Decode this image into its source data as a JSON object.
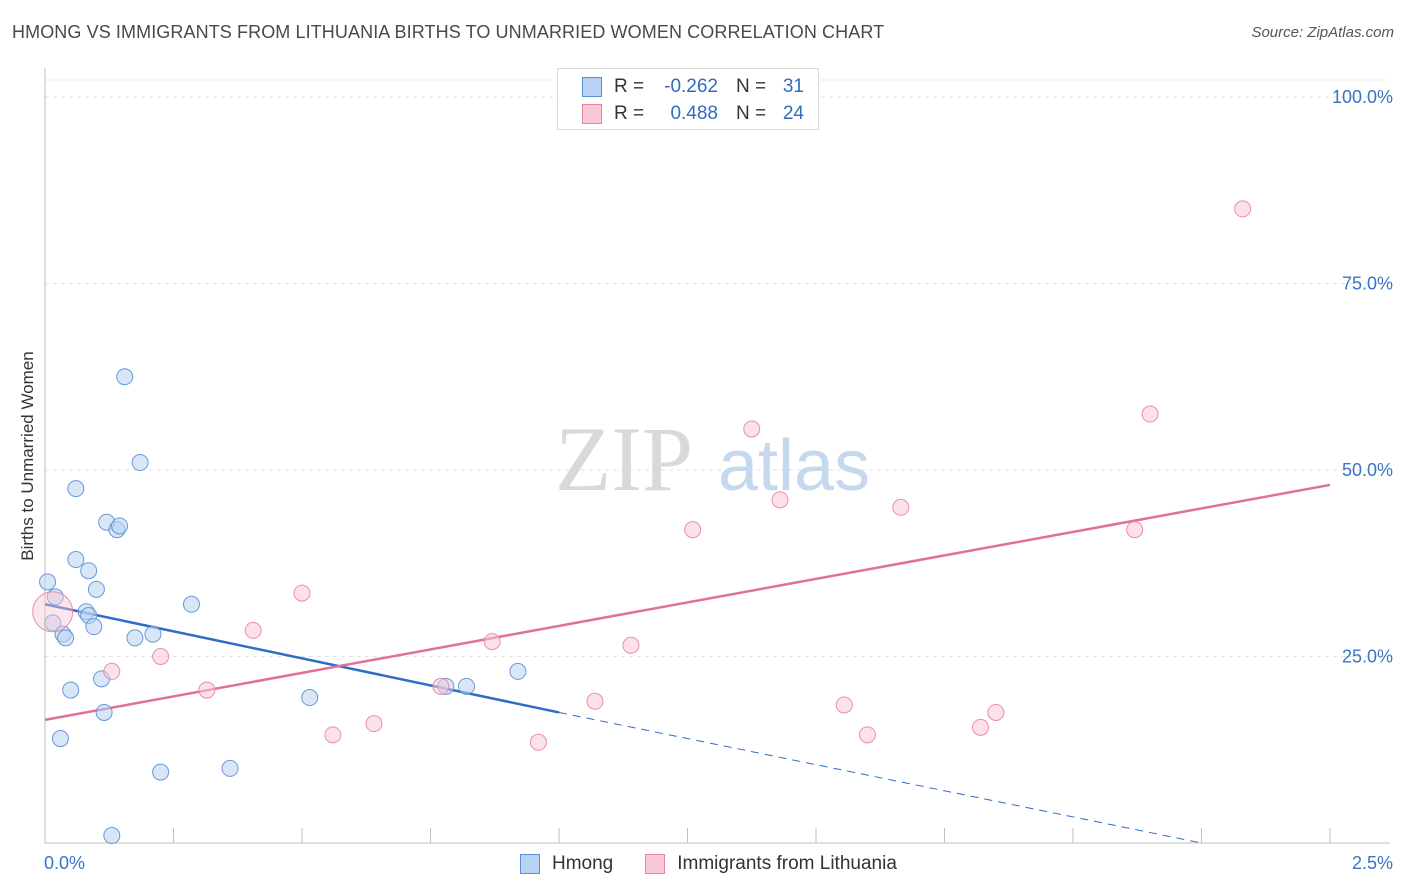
{
  "title": "HMONG VS IMMIGRANTS FROM LITHUANIA BIRTHS TO UNMARRIED WOMEN CORRELATION CHART",
  "source": "Source: ZipAtlas.com",
  "watermark": {
    "zip": "ZIP",
    "atlas": "atlas"
  },
  "legend": {
    "rows": [
      {
        "r_label": "R =",
        "r_value": "-0.262",
        "n_label": "N =",
        "n_value": "31"
      },
      {
        "r_label": "R =",
        "r_value": "0.488",
        "n_label": "N =",
        "n_value": "24"
      }
    ]
  },
  "colors": {
    "blue_fill": "#b8d2f3",
    "blue_stroke": "#5a8fd4",
    "blue_line": "#2f6cc8",
    "pink_fill": "#f9c8d7",
    "pink_stroke": "#e584a4",
    "pink_line": "#e07098",
    "axis_text": "#3a74c4"
  },
  "chart_data": {
    "type": "scatter",
    "xlabel": "",
    "ylabel": "Births to Unmarried Women",
    "xlim": [
      0,
      2.5
    ],
    "ylim": [
      0,
      104
    ],
    "x_tick_labels": [
      "0.0%",
      "2.5%"
    ],
    "y_ticks": [
      25,
      50,
      75,
      100
    ],
    "y_tick_labels": [
      "25.0%",
      "50.0%",
      "75.0%",
      "100.0%"
    ],
    "grid": true,
    "legend_position": "bottom",
    "series": [
      {
        "name": "Hmong",
        "color": "#5a8fd4",
        "points": [
          [
            0.005,
            35.0
          ],
          [
            0.02,
            33.0
          ],
          [
            0.015,
            29.5
          ],
          [
            0.035,
            28.0
          ],
          [
            0.04,
            27.5
          ],
          [
            0.06,
            47.5
          ],
          [
            0.06,
            38.0
          ],
          [
            0.085,
            36.5
          ],
          [
            0.08,
            31.0
          ],
          [
            0.085,
            30.5
          ],
          [
            0.1,
            34.0
          ],
          [
            0.095,
            29.0
          ],
          [
            0.05,
            20.5
          ],
          [
            0.11,
            22.0
          ],
          [
            0.03,
            14.0
          ],
          [
            0.115,
            17.5
          ],
          [
            0.12,
            43.0
          ],
          [
            0.14,
            42.0
          ],
          [
            0.145,
            42.5
          ],
          [
            0.155,
            62.5
          ],
          [
            0.185,
            51.0
          ],
          [
            0.175,
            27.5
          ],
          [
            0.21,
            28.0
          ],
          [
            0.225,
            9.5
          ],
          [
            0.285,
            32.0
          ],
          [
            0.36,
            10.0
          ],
          [
            0.515,
            19.5
          ],
          [
            0.78,
            21.0
          ],
          [
            0.82,
            21.0
          ],
          [
            0.92,
            23.0
          ],
          [
            0.13,
            1.0
          ]
        ]
      },
      {
        "name": "Immigrants from Lithuania",
        "color": "#e584a4",
        "points": [
          [
            0.015,
            31.0
          ],
          [
            0.13,
            23.0
          ],
          [
            0.225,
            25.0
          ],
          [
            0.315,
            20.5
          ],
          [
            0.405,
            28.5
          ],
          [
            0.5,
            33.5
          ],
          [
            0.56,
            14.5
          ],
          [
            0.64,
            16.0
          ],
          [
            0.77,
            21.0
          ],
          [
            0.87,
            27.0
          ],
          [
            0.96,
            13.5
          ],
          [
            1.07,
            19.0
          ],
          [
            1.14,
            26.5
          ],
          [
            1.26,
            42.0
          ],
          [
            1.375,
            55.5
          ],
          [
            1.43,
            46.0
          ],
          [
            1.555,
            18.5
          ],
          [
            1.6,
            14.5
          ],
          [
            1.665,
            45.0
          ],
          [
            1.82,
            15.5
          ],
          [
            1.85,
            17.5
          ],
          [
            2.12,
            42.0
          ],
          [
            2.15,
            57.5
          ],
          [
            2.33,
            85.0
          ]
        ]
      }
    ],
    "trendlines": [
      {
        "series": "Hmong",
        "x": [
          0.0,
          1.0
        ],
        "y": [
          32.0,
          17.5
        ],
        "style": "solid",
        "extended_to": [
          2.25,
          0.0
        ],
        "extended_style": "dashed"
      },
      {
        "series": "Immigrants from Lithuania",
        "x": [
          0.0,
          2.5
        ],
        "y": [
          16.5,
          48.0
        ],
        "style": "solid"
      }
    ]
  }
}
